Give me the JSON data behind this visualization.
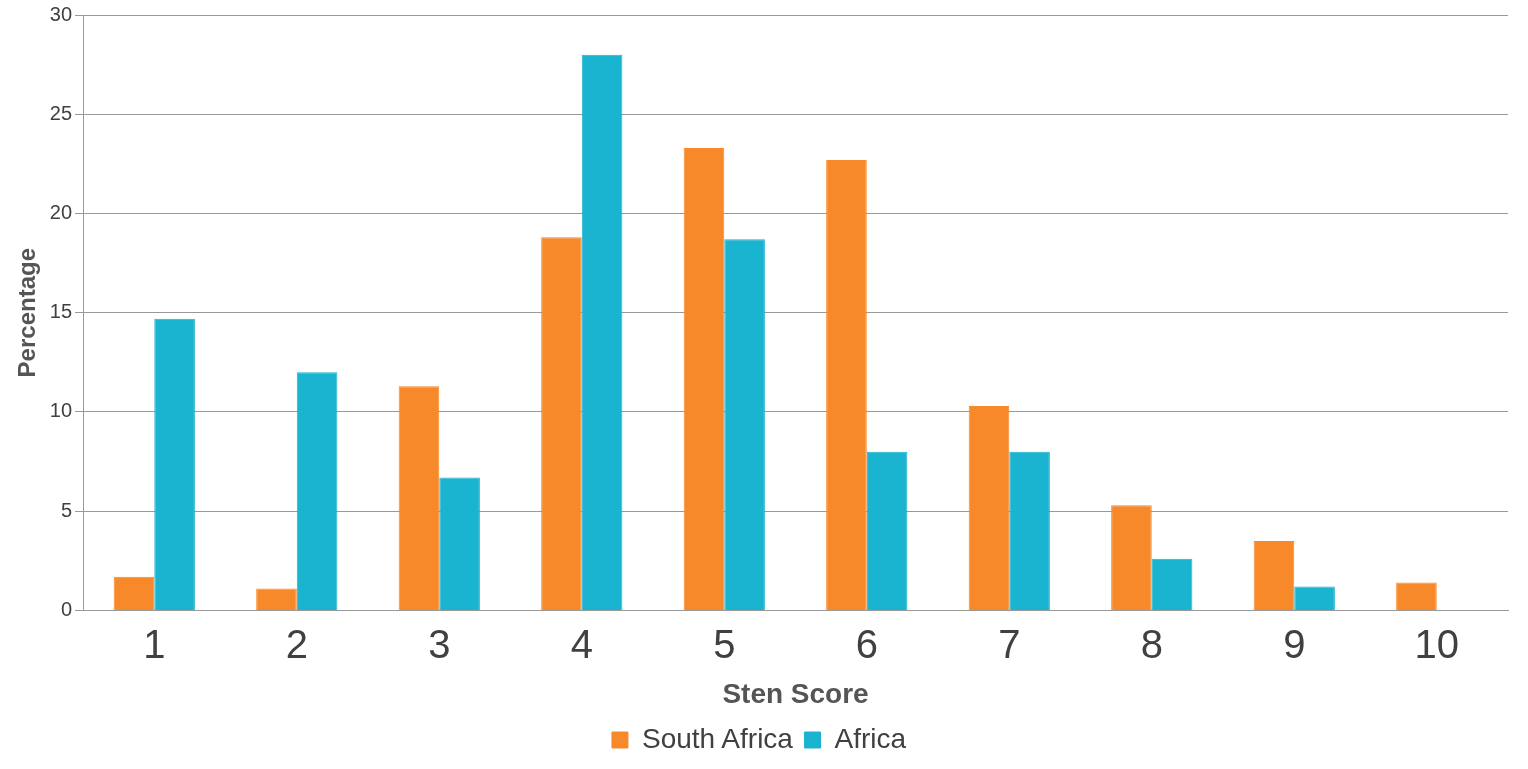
{
  "chart_data": {
    "type": "bar",
    "xlabel": "Sten Score",
    "ylabel": "Percentage",
    "categories": [
      "1",
      "2",
      "3",
      "4",
      "5",
      "6",
      "7",
      "8",
      "9",
      "10"
    ],
    "series": [
      {
        "name": "South Africa",
        "color": "#f7892b",
        "values": [
          1.7,
          1.1,
          11.3,
          18.8,
          23.3,
          22.7,
          10.3,
          5.3,
          3.5,
          1.4
        ]
      },
      {
        "name": "Africa",
        "color": "#1ab3d0",
        "values": [
          14.7,
          12.0,
          6.7,
          28.0,
          18.7,
          8.0,
          8.0,
          2.6,
          1.2,
          null
        ]
      }
    ],
    "ylim": [
      0,
      30
    ],
    "yticks": [
      0,
      5,
      10,
      15,
      20,
      25,
      30
    ],
    "grid": "y",
    "legend": "bottom"
  }
}
